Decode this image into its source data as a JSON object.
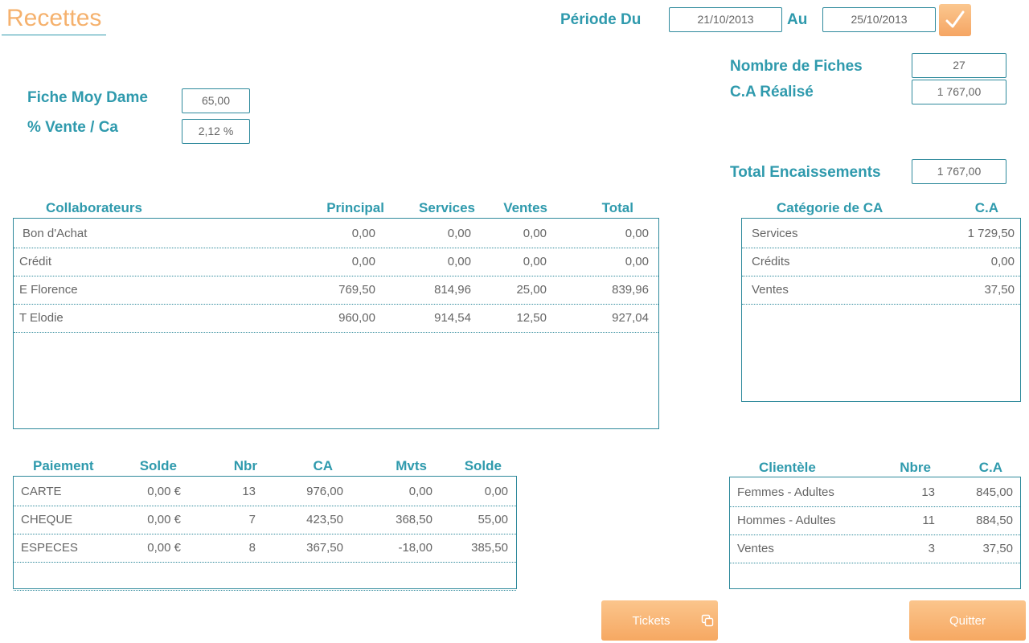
{
  "page": {
    "title": "Recettes"
  },
  "period": {
    "from_label": "Période Du",
    "from_value": "21/10/2013",
    "to_label": "Au",
    "to_value": "25/10/2013"
  },
  "stats": {
    "nb_fiches_label": "Nombre de Fiches",
    "nb_fiches_value": "27",
    "ca_realise_label": "C.A Réalisé",
    "ca_realise_value": "1 767,00",
    "fiche_moy_label": "Fiche Moy Dame",
    "fiche_moy_value": "65,00",
    "vente_ca_label": "% Vente / Ca",
    "vente_ca_value": "2,12 %",
    "total_enc_label": "Total Encaissements",
    "total_enc_value": "1 767,00"
  },
  "collaborateurs": {
    "headers": [
      "Collaborateurs",
      "Principal",
      "Services",
      "Ventes",
      "Total"
    ],
    "rows": [
      [
        "Bon d'Achat",
        "0,00",
        "0,00",
        "0,00",
        "0,00"
      ],
      [
        "Crédit",
        "0,00",
        "0,00",
        "0,00",
        "0,00"
      ],
      [
        "E Florence",
        "769,50",
        "814,96",
        "25,00",
        "839,96"
      ],
      [
        "T Elodie",
        "960,00",
        "914,54",
        "12,50",
        "927,04"
      ]
    ]
  },
  "categories": {
    "headers": [
      "Catégorie de CA",
      "C.A"
    ],
    "rows": [
      [
        "Services",
        "1 729,50"
      ],
      [
        "Crédits",
        "0,00"
      ],
      [
        "Ventes",
        "37,50"
      ]
    ]
  },
  "paiements": {
    "headers": [
      "Paiement",
      "Solde",
      "Nbr",
      "CA",
      "Mvts",
      "Solde"
    ],
    "rows": [
      [
        "CARTE",
        "0,00 €",
        "13",
        "976,00",
        "0,00",
        "0,00"
      ],
      [
        "CHEQUE",
        "0,00 €",
        "7",
        "423,50",
        "368,50",
        "55,00"
      ],
      [
        "ESPECES",
        "0,00 €",
        "8",
        "367,50",
        "-18,00",
        "385,50"
      ]
    ]
  },
  "clientele": {
    "headers": [
      "Clientèle",
      "Nbre",
      "C.A"
    ],
    "rows": [
      [
        "Femmes - Adultes",
        "13",
        "845,00"
      ],
      [
        "Hommes - Adultes",
        "11",
        "884,50"
      ],
      [
        "Ventes",
        "3",
        "37,50"
      ]
    ]
  },
  "buttons": {
    "tickets": "Tickets",
    "quitter": "Quitter"
  },
  "icons": {
    "validate": "checkmark-icon",
    "tickets": "copy-icon"
  },
  "colors": {
    "accent": "#2f9aad",
    "title": "#f5b16d",
    "button": "#f6a862"
  }
}
